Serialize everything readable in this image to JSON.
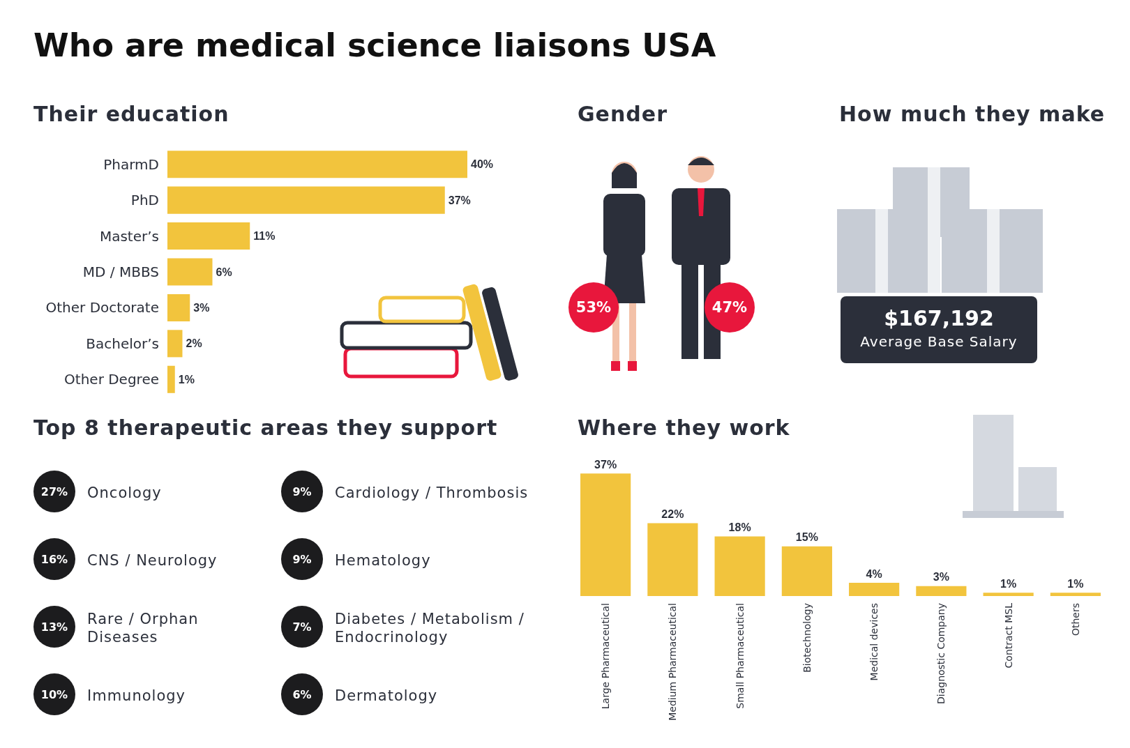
{
  "chart_data": [
    {
      "type": "other",
      "title": "Who are medical science liaisons USA"
    },
    {
      "type": "bar",
      "title": "Their education",
      "orientation": "horizontal",
      "categories": [
        "PharmD",
        "PhD",
        "Master’s",
        "MD / MBBS",
        "Other Doctorate",
        "Bachelor’s",
        "Other Degree"
      ],
      "values": [
        40,
        37,
        11,
        6,
        3,
        2,
        1
      ],
      "value_labels": [
        "40%",
        "37%",
        "11%",
        "6%",
        "3%",
        "2%",
        "1%"
      ],
      "color": "#f2c43d"
    },
    {
      "type": "other",
      "title": "Gender",
      "annotations": [
        "53%",
        "47%"
      ]
    },
    {
      "type": "other",
      "title": "How much they make",
      "annotations": [
        "$167,192",
        "Average Base Salary"
      ]
    },
    {
      "type": "other",
      "title": "Top 8 therapeutic areas they support",
      "categories": [
        "Oncology",
        "CNS / Neurology",
        "Rare / Orphan Diseases",
        "Immunology",
        "Cardiology / Thrombosis",
        "Hematology",
        "Diabetes / Metabolism / Endocrinology",
        "Dermatology"
      ],
      "value_labels": [
        "27%",
        "16%",
        "13%",
        "10%",
        "9%",
        "9%",
        "7%",
        "6%"
      ]
    },
    {
      "type": "bar",
      "title": "Where they work",
      "categories": [
        "Large Pharmaceutical",
        "Medium Pharmaceutical",
        "Small Pharmaceutical",
        "Biotechnology",
        "Medical devices",
        "Diagnostic Company",
        "Contract MSL",
        "Others"
      ],
      "values": [
        37,
        22,
        18,
        15,
        4,
        3,
        1,
        1
      ],
      "value_labels": [
        "37%",
        "22%",
        "18%",
        "15%",
        "4%",
        "3%",
        "1%",
        "1%"
      ],
      "color": "#f2c43d"
    }
  ]
}
